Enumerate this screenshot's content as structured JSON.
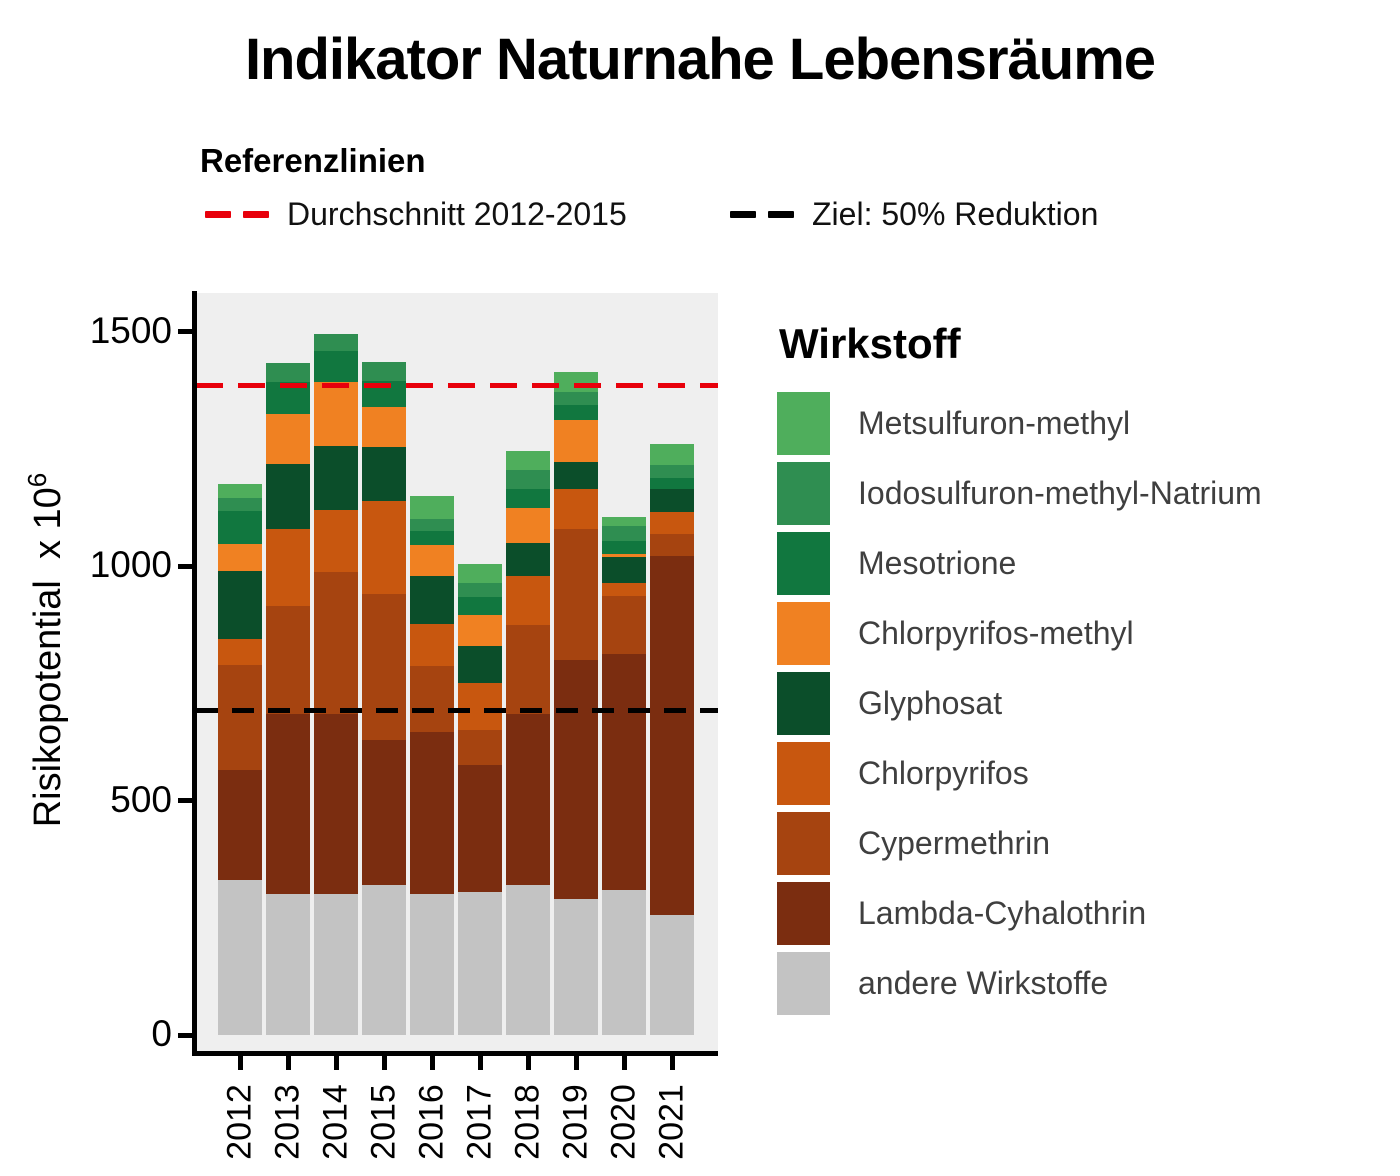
{
  "title": "Indikator Naturnahe Lebensräume",
  "ref_legend": {
    "title": "Referenzlinien",
    "items": [
      {
        "label": "Durchschnitt 2012-2015",
        "color": "#e8000b"
      },
      {
        "label": "Ziel: 50% Reduktion",
        "color": "#000000"
      }
    ]
  },
  "y_axis": {
    "title_main": "Risikopotential  x 10",
    "title_sup": "6",
    "tick_labels": [
      "1500",
      "1000",
      "500",
      "0"
    ],
    "tick_values": [
      1500,
      1000,
      500,
      0
    ]
  },
  "x_axis": {
    "labels": [
      "2012",
      "2013",
      "2014",
      "2015",
      "2016",
      "2017",
      "2018",
      "2019",
      "2020",
      "2021"
    ]
  },
  "legend": {
    "title": "Wirkstoff",
    "items": [
      {
        "label": "Metsulfuron-methyl",
        "color": "#4fae5c"
      },
      {
        "label": "Iodosulfuron-methyl-Natrium",
        "color": "#2f8e51"
      },
      {
        "label": "Mesotrione",
        "color": "#11773f"
      },
      {
        "label": "Chlorpyrifos-methyl",
        "color": "#f08122"
      },
      {
        "label": "Glyphosat",
        "color": "#0b4e2a"
      },
      {
        "label": "Chlorpyrifos",
        "color": "#c8570f"
      },
      {
        "label": "Cypermethrin",
        "color": "#a64410"
      },
      {
        "label": "Lambda-Cyhalothrin",
        "color": "#7b2d10"
      },
      {
        "label": "andere Wirkstoffe",
        "color": "#c3c3c3"
      }
    ]
  },
  "chart_data": {
    "type": "bar",
    "stacked": true,
    "title": "Indikator Naturnahe Lebensräume",
    "ylabel": "Risikopotential x 10^6",
    "xlabel": "",
    "ylim": [
      0,
      1583
    ],
    "yticks": [
      0,
      500,
      1000,
      1500
    ],
    "grid": false,
    "legend_title": "Wirkstoff",
    "legend_position": "right",
    "categories": [
      "2012",
      "2013",
      "2014",
      "2015",
      "2016",
      "2017",
      "2018",
      "2019",
      "2020",
      "2021"
    ],
    "series_bottom_to_top": [
      {
        "name": "andere Wirkstoffe",
        "color": "#c3c3c3",
        "values": [
          330,
          300,
          300,
          320,
          300,
          305,
          320,
          290,
          310,
          255
        ]
      },
      {
        "name": "Lambda-Cyhalothrin",
        "color": "#7b2d10",
        "values": [
          235,
          385,
          385,
          310,
          347,
          270,
          365,
          510,
          503,
          766
        ]
      },
      {
        "name": "Cypermethrin",
        "color": "#a64410",
        "values": [
          225,
          230,
          302,
          310,
          141,
          75,
          190,
          280,
          124,
          48
        ]
      },
      {
        "name": "Chlorpyrifos",
        "color": "#c8570f",
        "values": [
          55,
          165,
          132,
          200,
          89,
          100,
          105,
          84,
          28,
          47
        ]
      },
      {
        "name": "Glyphosat",
        "color": "#0b4e2a",
        "values": [
          145,
          138,
          138,
          114,
          103,
          80,
          70,
          58,
          55,
          48
        ]
      },
      {
        "name": "Chlorpyrifos-methyl",
        "color": "#f08122",
        "values": [
          57,
          107,
          136,
          86,
          66,
          65,
          75,
          90,
          6,
          0
        ]
      },
      {
        "name": "Mesotrione",
        "color": "#11773f",
        "values": [
          70,
          68,
          67,
          55,
          29,
          40,
          40,
          31,
          28,
          24
        ]
      },
      {
        "name": "Iodosulfuron-methyl-Natrium",
        "color": "#2f8e51",
        "values": [
          28,
          40,
          35,
          40,
          25,
          30,
          40,
          29,
          31,
          28
        ]
      },
      {
        "name": "Metsulfuron-methyl",
        "color": "#4fae5c",
        "values": [
          30,
          0,
          0,
          0,
          50,
          40,
          40,
          43,
          20,
          44
        ]
      }
    ],
    "totals": [
      1175,
      1433,
      1495,
      1435,
      1150,
      1005,
      1245,
      1415,
      1105,
      1260
    ],
    "reference_lines": [
      {
        "label": "Durchschnitt 2012-2015",
        "value": 1385,
        "color": "#e8000b",
        "style": "dashed"
      },
      {
        "label": "Ziel: 50% Reduktion",
        "value": 692,
        "color": "#000000",
        "style": "dashed"
      }
    ]
  }
}
